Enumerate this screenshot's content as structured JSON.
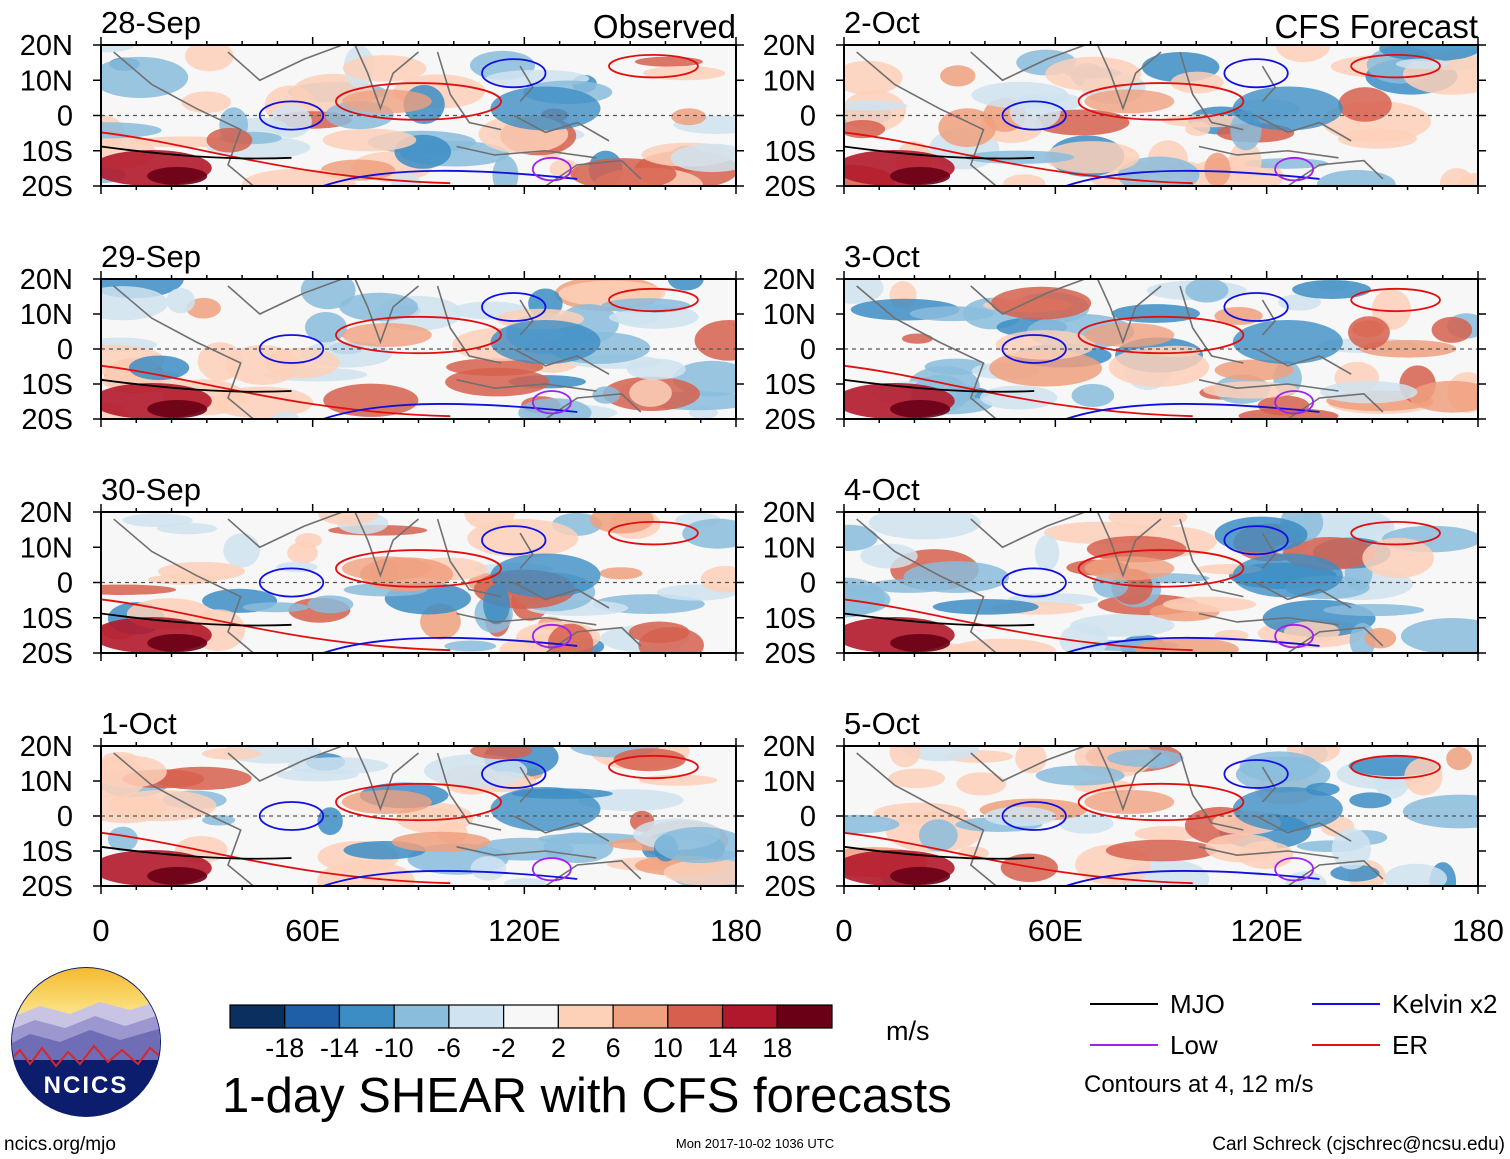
{
  "chart_data": {
    "type": "heatmap",
    "title": "1-day SHEAR with CFS forecasts",
    "units": "m/s",
    "contour_note": "Contours at 4, 12 m/s",
    "column_titles": [
      "Observed",
      "CFS Forecast"
    ],
    "x_ticks": [
      "0",
      "60E",
      "120E",
      "180"
    ],
    "y_ticks": [
      "20N",
      "10N",
      "0",
      "10S",
      "20S"
    ],
    "xlim": [
      0,
      180
    ],
    "ylim": [
      -20,
      20
    ],
    "panels": [
      {
        "date": "28-Sep",
        "column": "observed"
      },
      {
        "date": "29-Sep",
        "column": "observed"
      },
      {
        "date": "30-Sep",
        "column": "observed"
      },
      {
        "date": "1-Oct",
        "column": "observed"
      },
      {
        "date": "2-Oct",
        "column": "forecast"
      },
      {
        "date": "3-Oct",
        "column": "forecast"
      },
      {
        "date": "4-Oct",
        "column": "forecast"
      },
      {
        "date": "5-Oct",
        "column": "forecast"
      }
    ],
    "colorbar": {
      "labels": [
        "-18",
        "-14",
        "-10",
        "-6",
        "-2",
        "2",
        "6",
        "10",
        "14",
        "18"
      ],
      "colors": [
        "#0a3060",
        "#1f5fa8",
        "#3c8dc4",
        "#8abcdc",
        "#cfe3f0",
        "#f7f7f7",
        "#fdd0b8",
        "#f0a07e",
        "#d6604d",
        "#b2182b",
        "#6a0016"
      ]
    },
    "legend": [
      {
        "label": "MJO",
        "color": "#000000"
      },
      {
        "label": "Kelvin x2",
        "color": "#1010e0"
      },
      {
        "label": "Low",
        "color": "#a020f0"
      },
      {
        "label": "ER",
        "color": "#e01010"
      }
    ]
  },
  "logo": {
    "text": "NCICS"
  },
  "footer": {
    "url": "ncics.org/mjo",
    "timestamp": "Mon 2017-10-02 1036 UTC",
    "credit": "Carl Schreck (cjschrec@ncsu.edu)"
  }
}
